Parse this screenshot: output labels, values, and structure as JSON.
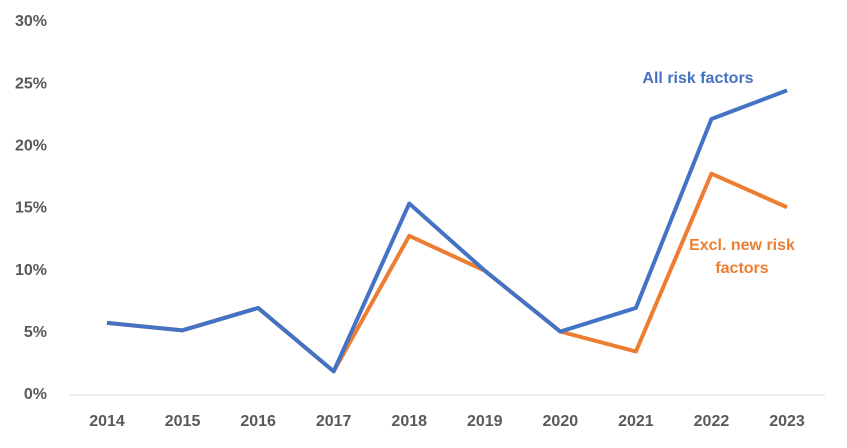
{
  "chart_data": {
    "type": "line",
    "categories": [
      "2014",
      "2015",
      "2016",
      "2017",
      "2018",
      "2019",
      "2020",
      "2021",
      "2022",
      "2023"
    ],
    "series": [
      {
        "name": "All risk factors",
        "color": "#4472c4",
        "values": [
          5.8,
          5.2,
          7.0,
          1.9,
          15.4,
          10.0,
          5.1,
          7.0,
          22.2,
          24.5
        ]
      },
      {
        "name": "Excl. new risk factors",
        "color": "#ed7d31",
        "values": [
          5.8,
          5.2,
          7.0,
          1.9,
          12.8,
          10.0,
          5.1,
          3.5,
          17.8,
          15.1
        ]
      }
    ],
    "ylim": [
      0,
      30
    ],
    "yticks": [
      {
        "value": 0,
        "label": "0%"
      },
      {
        "value": 5,
        "label": "5%"
      },
      {
        "value": 10,
        "label": "10%"
      },
      {
        "value": 15,
        "label": "15%"
      },
      {
        "value": 20,
        "label": "20%"
      },
      {
        "value": 25,
        "label": "25%"
      },
      {
        "value": 30,
        "label": "30%"
      }
    ],
    "grid": false
  }
}
